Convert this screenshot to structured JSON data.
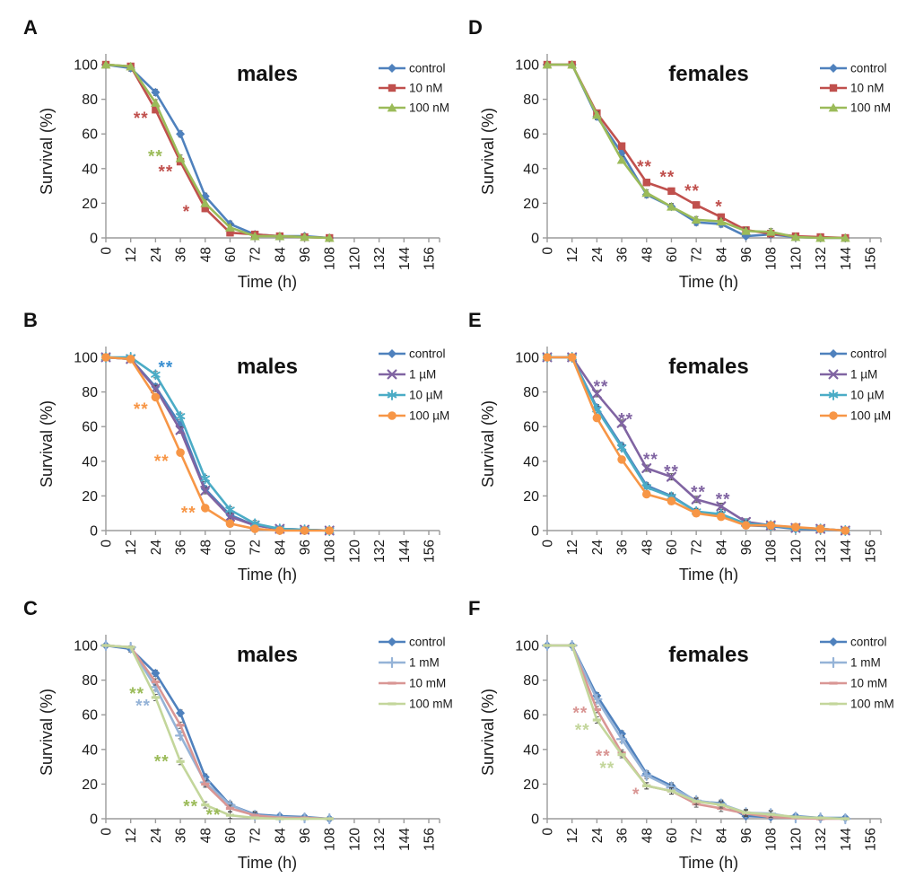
{
  "figure": {
    "background": "#ffffff",
    "panels_order": [
      "A",
      "D",
      "B",
      "E",
      "C",
      "F"
    ]
  },
  "chart_data": [
    {
      "type": "line",
      "panel_label": "A",
      "title": "males",
      "xlabel": "Time (h)",
      "ylabel": "Survival (%)",
      "xlim": [
        0,
        156
      ],
      "ylim": [
        0,
        100
      ],
      "xticks": [
        0,
        12,
        24,
        36,
        48,
        60,
        72,
        84,
        96,
        108,
        120,
        132,
        144,
        156
      ],
      "yticks": [
        0,
        20,
        40,
        60,
        80,
        100
      ],
      "grid": false,
      "legend_position": "right",
      "x": [
        0,
        12,
        24,
        36,
        48,
        60,
        72,
        84,
        96,
        108
      ],
      "series": [
        {
          "name": "control",
          "color": "#4F81BD",
          "marker": "diamond",
          "values": [
            100,
            98,
            84,
            60,
            24,
            8,
            2,
            1,
            1,
            0
          ]
        },
        {
          "name": "10 nM",
          "color": "#C0504D",
          "marker": "square",
          "values": [
            100,
            99,
            74,
            44,
            17,
            3,
            2,
            1,
            0.5,
            0
          ]
        },
        {
          "name": "100 nM",
          "color": "#9BBB59",
          "marker": "triangle",
          "values": [
            100,
            99,
            78,
            46,
            20,
            6,
            1,
            1,
            0.5,
            0
          ]
        }
      ],
      "annotations": [
        {
          "text": "**",
          "color": "#C0504D",
          "x": 17,
          "y": 69
        },
        {
          "text": "**",
          "color": "#9BBB59",
          "x": 24,
          "y": 47
        },
        {
          "text": "**",
          "color": "#C0504D",
          "x": 29,
          "y": 38
        },
        {
          "text": "*",
          "color": "#C0504D",
          "x": 39,
          "y": 15
        }
      ]
    },
    {
      "type": "line",
      "panel_label": "D",
      "title": "females",
      "xlabel": "Time (h)",
      "ylabel": "Survival (%)",
      "xlim": [
        0,
        156
      ],
      "ylim": [
        0,
        100
      ],
      "xticks": [
        0,
        12,
        24,
        36,
        48,
        60,
        72,
        84,
        96,
        108,
        120,
        132,
        144,
        156
      ],
      "yticks": [
        0,
        20,
        40,
        60,
        80,
        100
      ],
      "grid": false,
      "legend_position": "right",
      "x": [
        0,
        12,
        24,
        36,
        48,
        60,
        72,
        84,
        96,
        108,
        120,
        132,
        144
      ],
      "series": [
        {
          "name": "control",
          "color": "#4F81BD",
          "marker": "diamond",
          "values": [
            100,
            100,
            70,
            49,
            25,
            18,
            9,
            8,
            1,
            2,
            0.5,
            0,
            0
          ]
        },
        {
          "name": "10 nM",
          "color": "#C0504D",
          "marker": "square",
          "values": [
            100,
            100,
            72,
            53,
            32,
            27,
            19,
            12,
            4.5,
            2.5,
            1,
            0.5,
            0
          ]
        },
        {
          "name": "100 nM",
          "color": "#9BBB59",
          "marker": "triangle",
          "values": [
            100,
            100,
            71,
            45,
            26,
            18,
            10.5,
            9.5,
            4,
            3.5,
            0.5,
            0,
            0
          ]
        }
      ],
      "annotations": [
        {
          "text": "**",
          "color": "#C0504D",
          "x": 47,
          "y": 41
        },
        {
          "text": "**",
          "color": "#C0504D",
          "x": 58,
          "y": 35
        },
        {
          "text": "**",
          "color": "#C0504D",
          "x": 70,
          "y": 27
        },
        {
          "text": "*",
          "color": "#C0504D",
          "x": 83,
          "y": 18
        }
      ]
    },
    {
      "type": "line",
      "panel_label": "B",
      "title": "males",
      "xlabel": "Time (h)",
      "ylabel": "Survival (%)",
      "xlim": [
        0,
        156
      ],
      "ylim": [
        0,
        100
      ],
      "xticks": [
        0,
        12,
        24,
        36,
        48,
        60,
        72,
        84,
        96,
        108,
        120,
        132,
        144,
        156
      ],
      "yticks": [
        0,
        20,
        40,
        60,
        80,
        100
      ],
      "grid": false,
      "legend_position": "right",
      "x": [
        0,
        12,
        24,
        36,
        48,
        60,
        72,
        84,
        96,
        108
      ],
      "series": [
        {
          "name": "control",
          "color": "#4F81BD",
          "marker": "diamond",
          "values": [
            100,
            99,
            83,
            61,
            24,
            9,
            3,
            1,
            0.5,
            0
          ]
        },
        {
          "name": "1 µM",
          "color": "#8064A2",
          "marker": "x",
          "values": [
            100,
            99,
            82,
            58,
            23,
            8,
            3,
            1,
            0.5,
            0
          ]
        },
        {
          "name": "10 µM",
          "color": "#4BACC6",
          "marker": "asterisk",
          "values": [
            100,
            100,
            90,
            66,
            30,
            12,
            4,
            1,
            0.5,
            0
          ]
        },
        {
          "name": "100 µM",
          "color": "#F79646",
          "marker": "circle",
          "values": [
            100,
            99,
            77,
            45,
            13,
            4,
            1,
            0,
            0,
            0
          ]
        }
      ],
      "annotations": [
        {
          "text": "**",
          "color": "#3A8FD1",
          "x": 29,
          "y": 94
        },
        {
          "text": "**",
          "color": "#F79646",
          "x": 17,
          "y": 70
        },
        {
          "text": "**",
          "color": "#F79646",
          "x": 27,
          "y": 40
        },
        {
          "text": "**",
          "color": "#F79646",
          "x": 40,
          "y": 10
        }
      ]
    },
    {
      "type": "line",
      "panel_label": "E",
      "title": "females",
      "xlabel": "Time (h)",
      "ylabel": "Survival (%)",
      "xlim": [
        0,
        156
      ],
      "ylim": [
        0,
        100
      ],
      "xticks": [
        0,
        12,
        24,
        36,
        48,
        60,
        72,
        84,
        96,
        108,
        120,
        132,
        144,
        156
      ],
      "yticks": [
        0,
        20,
        40,
        60,
        80,
        100
      ],
      "grid": false,
      "legend_position": "right",
      "x": [
        0,
        12,
        24,
        36,
        48,
        60,
        72,
        84,
        96,
        108,
        120,
        132,
        144
      ],
      "series": [
        {
          "name": "control",
          "color": "#4F81BD",
          "marker": "diamond",
          "values": [
            100,
            100,
            71,
            49,
            26,
            20,
            11,
            9,
            3,
            2.5,
            1,
            0.5,
            0
          ]
        },
        {
          "name": "1 µM",
          "color": "#8064A2",
          "marker": "x",
          "values": [
            100,
            100,
            79,
            62,
            36,
            31,
            18,
            14,
            5,
            3,
            1.5,
            1,
            0
          ]
        },
        {
          "name": "10 µM",
          "color": "#4BACC6",
          "marker": "asterisk",
          "values": [
            100,
            100,
            70,
            48,
            25,
            19.5,
            11,
            9.5,
            4,
            3,
            1.5,
            1,
            0
          ]
        },
        {
          "name": "100 µM",
          "color": "#F79646",
          "marker": "circle",
          "values": [
            100,
            100,
            65,
            41,
            21,
            17,
            10,
            8,
            3,
            3,
            2,
            1,
            0
          ]
        }
      ],
      "annotations": [
        {
          "text": "**",
          "color": "#8064A2",
          "x": 26,
          "y": 83
        },
        {
          "text": "**",
          "color": "#8064A2",
          "x": 38,
          "y": 64
        },
        {
          "text": "**",
          "color": "#8064A2",
          "x": 50,
          "y": 41
        },
        {
          "text": "**",
          "color": "#8064A2",
          "x": 60,
          "y": 34
        },
        {
          "text": "**",
          "color": "#8064A2",
          "x": 73,
          "y": 22
        },
        {
          "text": "**",
          "color": "#8064A2",
          "x": 85,
          "y": 18
        }
      ]
    },
    {
      "type": "line",
      "panel_label": "C",
      "title": "males",
      "xlabel": "Time (h)",
      "ylabel": "Survival (%)",
      "xlim": [
        0,
        156
      ],
      "ylim": [
        0,
        100
      ],
      "xticks": [
        0,
        12,
        24,
        36,
        48,
        60,
        72,
        84,
        96,
        108,
        120,
        132,
        144,
        156
      ],
      "yticks": [
        0,
        20,
        40,
        60,
        80,
        100
      ],
      "grid": false,
      "legend_position": "right",
      "x": [
        0,
        12,
        24,
        36,
        48,
        60,
        72,
        84,
        96,
        108
      ],
      "series": [
        {
          "name": "control",
          "color": "#4F81BD",
          "marker": "diamond",
          "values": [
            100,
            98,
            84,
            61,
            24,
            8,
            2.5,
            1.5,
            1,
            0
          ]
        },
        {
          "name": "1 mM",
          "color": "#95B3D7",
          "marker": "plus",
          "values": [
            100,
            99,
            76,
            48,
            21,
            8,
            2,
            1,
            0.5,
            0
          ]
        },
        {
          "name": "10 mM",
          "color": "#D99694",
          "marker": "dash",
          "values": [
            100,
            99,
            79,
            54,
            20,
            6,
            2,
            0.5,
            0.5,
            0
          ]
        },
        {
          "name": "100 mM",
          "color": "#C3D69B",
          "marker": "dash",
          "values": [
            100,
            99,
            70,
            33,
            8,
            2,
            0.5,
            0,
            0,
            0
          ]
        }
      ],
      "annotations": [
        {
          "text": "**",
          "color": "#9BBB59",
          "x": 15,
          "y": 72
        },
        {
          "text": "**",
          "color": "#95B3D7",
          "x": 18,
          "y": 65
        },
        {
          "text": "**",
          "color": "#9BBB59",
          "x": 27,
          "y": 33
        },
        {
          "text": "**",
          "color": "#9BBB59",
          "x": 41,
          "y": 7
        },
        {
          "text": "**",
          "color": "#9BBB59",
          "x": 52,
          "y": 2
        }
      ]
    },
    {
      "type": "line",
      "panel_label": "F",
      "title": "females",
      "xlabel": "Time (h)",
      "ylabel": "Survival (%)",
      "xlim": [
        0,
        156
      ],
      "ylim": [
        0,
        100
      ],
      "xticks": [
        0,
        12,
        24,
        36,
        48,
        60,
        72,
        84,
        96,
        108,
        120,
        132,
        144,
        156
      ],
      "yticks": [
        0,
        20,
        40,
        60,
        80,
        100
      ],
      "grid": false,
      "legend_position": "right",
      "x": [
        0,
        12,
        24,
        36,
        48,
        60,
        72,
        84,
        96,
        108,
        120,
        132,
        144
      ],
      "series": [
        {
          "name": "control",
          "color": "#4F81BD",
          "marker": "diamond",
          "values": [
            100,
            100,
            71,
            49,
            26,
            19,
            10,
            9,
            1.5,
            1,
            1.5,
            0.5,
            0.5
          ]
        },
        {
          "name": "1 mM",
          "color": "#95B3D7",
          "marker": "plus",
          "values": [
            100,
            100,
            69,
            46,
            25,
            18,
            10.5,
            8.5,
            3.5,
            3,
            0.5,
            0.5,
            0
          ]
        },
        {
          "name": "10 mM",
          "color": "#D99694",
          "marker": "dash",
          "values": [
            100,
            100,
            63,
            38,
            19,
            16,
            8.5,
            6,
            3,
            1,
            0.5,
            0,
            0
          ]
        },
        {
          "name": "100 mM",
          "color": "#C3D69B",
          "marker": "dash",
          "values": [
            100,
            100,
            57,
            37,
            19,
            16,
            10,
            8,
            3.5,
            2.5,
            1,
            0.5,
            0
          ]
        }
      ],
      "annotations": [
        {
          "text": "**",
          "color": "#D99694",
          "x": 16,
          "y": 61
        },
        {
          "text": "**",
          "color": "#C3D69B",
          "x": 17,
          "y": 51
        },
        {
          "text": "**",
          "color": "#D99694",
          "x": 27,
          "y": 36
        },
        {
          "text": "**",
          "color": "#C3D69B",
          "x": 29,
          "y": 29
        },
        {
          "text": "*",
          "color": "#D99694",
          "x": 43,
          "y": 14
        }
      ]
    }
  ]
}
